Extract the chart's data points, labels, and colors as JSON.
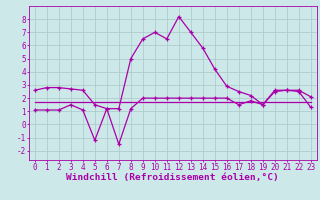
{
  "background_color": "#cde8e8",
  "grid_color": "#aac8c8",
  "line_color": "#aa00aa",
  "xlim": [
    -0.5,
    23.5
  ],
  "ylim": [
    -2.7,
    9.0
  ],
  "yticks": [
    -2,
    -1,
    0,
    1,
    2,
    3,
    4,
    5,
    6,
    7,
    8
  ],
  "xticks": [
    0,
    1,
    2,
    3,
    4,
    5,
    6,
    7,
    8,
    9,
    10,
    11,
    12,
    13,
    14,
    15,
    16,
    17,
    18,
    19,
    20,
    21,
    22,
    23
  ],
  "xlabel": "Windchill (Refroidissement éolien,°C)",
  "tick_fontsize": 5.5,
  "xlabel_fontsize": 6.8,
  "line1_x": [
    0,
    1,
    2,
    3,
    4,
    5,
    6,
    7,
    8,
    9,
    10,
    11,
    12,
    13,
    14,
    15,
    16,
    17,
    18,
    19,
    20,
    21,
    22,
    23
  ],
  "line1_y": [
    2.6,
    2.8,
    2.8,
    2.7,
    2.6,
    1.5,
    1.2,
    1.2,
    5.0,
    6.5,
    7.0,
    6.5,
    8.2,
    7.0,
    5.8,
    4.2,
    2.9,
    2.5,
    2.2,
    1.5,
    2.5,
    2.6,
    2.6,
    2.1
  ],
  "line2_x": [
    0,
    1,
    2,
    3,
    4,
    5,
    6,
    7,
    8,
    9,
    10,
    11,
    12,
    13,
    14,
    15,
    16,
    17,
    18,
    19,
    20,
    21,
    22,
    23
  ],
  "line2_y": [
    1.1,
    1.1,
    1.1,
    1.5,
    1.1,
    -1.2,
    1.2,
    -1.5,
    1.2,
    2.0,
    2.0,
    2.0,
    2.0,
    2.0,
    2.0,
    2.0,
    2.0,
    1.5,
    1.8,
    1.5,
    2.6,
    2.6,
    2.5,
    1.3
  ],
  "line3_x": [
    0,
    23
  ],
  "line3_y": [
    1.7,
    1.7
  ]
}
